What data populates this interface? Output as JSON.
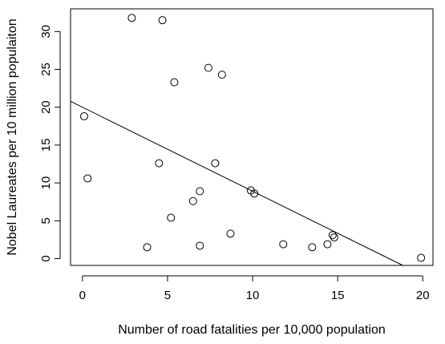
{
  "chart_data": {
    "type": "scatter",
    "title": "",
    "xlabel": "Number of road fatalities per 10,000 population",
    "ylabel": "Nobel Laureates per 10 million populaiton",
    "xlim": [
      -0.7,
      20.6
    ],
    "ylim": [
      -0.9,
      33.0
    ],
    "x_ticks": [
      0,
      5,
      10,
      15,
      20
    ],
    "y_ticks": [
      0,
      5,
      10,
      15,
      20,
      25,
      30
    ],
    "grid": false,
    "points": [
      {
        "x": 2.9,
        "y": 31.8
      },
      {
        "x": 4.7,
        "y": 31.5
      },
      {
        "x": 7.4,
        "y": 25.2
      },
      {
        "x": 8.2,
        "y": 24.3
      },
      {
        "x": 5.4,
        "y": 23.3
      },
      {
        "x": 0.1,
        "y": 18.8
      },
      {
        "x": 4.5,
        "y": 12.6
      },
      {
        "x": 7.8,
        "y": 12.6
      },
      {
        "x": 0.3,
        "y": 10.6
      },
      {
        "x": 9.9,
        "y": 9.0
      },
      {
        "x": 10.1,
        "y": 8.6
      },
      {
        "x": 6.9,
        "y": 8.9
      },
      {
        "x": 6.5,
        "y": 7.6
      },
      {
        "x": 5.2,
        "y": 5.4
      },
      {
        "x": 8.7,
        "y": 3.3
      },
      {
        "x": 14.7,
        "y": 3.1
      },
      {
        "x": 14.8,
        "y": 2.8
      },
      {
        "x": 11.8,
        "y": 1.9
      },
      {
        "x": 14.4,
        "y": 1.9
      },
      {
        "x": 6.9,
        "y": 1.7
      },
      {
        "x": 3.8,
        "y": 1.5
      },
      {
        "x": 13.5,
        "y": 1.5
      },
      {
        "x": 19.9,
        "y": 0.1
      }
    ],
    "trend_line": {
      "intercept": 20.0,
      "slope": -1.11
    }
  }
}
